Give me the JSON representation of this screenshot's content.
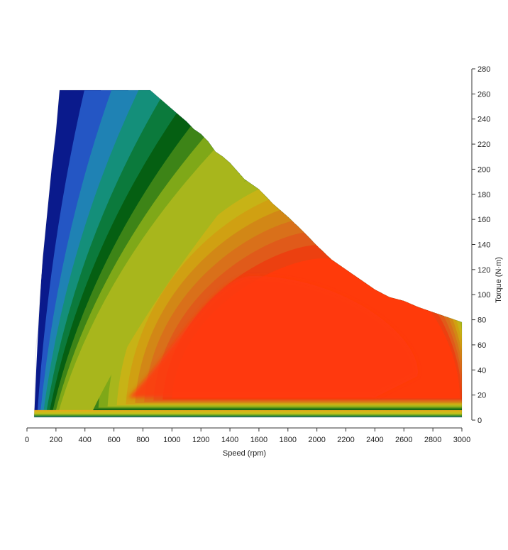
{
  "chart_data": {
    "type": "heatmap",
    "subtype": "filled-contour efficiency map over speed/torque operating envelope",
    "xlabel": "Speed (rpm)",
    "ylabel": "Torque (N·m)",
    "xlim": [
      0,
      3000
    ],
    "ylim": [
      0,
      280
    ],
    "x_ticks": [
      0,
      200,
      400,
      600,
      800,
      1000,
      1200,
      1400,
      1600,
      1800,
      2000,
      2200,
      2400,
      2600,
      2800,
      3000
    ],
    "y_ticks": [
      0,
      20,
      40,
      60,
      80,
      100,
      120,
      140,
      160,
      180,
      200,
      220,
      240,
      260,
      280
    ],
    "y_axis_side": "right",
    "grid": false,
    "legend": "none",
    "envelope": {
      "speed": [
        50,
        55,
        60,
        65,
        75,
        90,
        110,
        140,
        170,
        200,
        225,
        850,
        900,
        1000,
        1100,
        1150,
        1200,
        1250,
        1300,
        1350,
        1400,
        1500,
        1600,
        1700,
        1800,
        1900,
        2000,
        2100,
        2200,
        2300,
        2400,
        2500,
        2600,
        2700,
        2800,
        2900,
        3000
      ],
      "torque": [
        4,
        30,
        55,
        62,
        70,
        100,
        130,
        165,
        200,
        230,
        263,
        263,
        258,
        248,
        238,
        232,
        228,
        222,
        214,
        210,
        205,
        192,
        184,
        172,
        162,
        151,
        139,
        128,
        120,
        112,
        104,
        98,
        95,
        90,
        86,
        82,
        78
      ]
    },
    "efficiency_bands": [
      {
        "level": 1,
        "color": "#0a1a8c"
      },
      {
        "level": 2,
        "color": "#2456c4"
      },
      {
        "level": 3,
        "color": "#1f82b4"
      },
      {
        "level": 4,
        "color": "#148f7a"
      },
      {
        "level": 5,
        "color": "#0b7a3c"
      },
      {
        "level": 6,
        "color": "#055f12"
      },
      {
        "level": 7,
        "color": "#3d8417"
      },
      {
        "level": 8,
        "color": "#7fa818"
      },
      {
        "level": 9,
        "color": "#a8b61c"
      },
      {
        "level": 10,
        "color": "#c7b316"
      },
      {
        "level": 11,
        "color": "#d0a012"
      },
      {
        "level": 12,
        "color": "#d28716"
      },
      {
        "level": 13,
        "color": "#d9701a"
      },
      {
        "level": 14,
        "color": "#e05a1a"
      },
      {
        "level": 15,
        "color": "#ec4010"
      },
      {
        "level": 16,
        "color": "#ff3a0a"
      }
    ],
    "peak_region": {
      "speed_range": [
        700,
        2400
      ],
      "torque_range": [
        18,
        115
      ]
    }
  }
}
